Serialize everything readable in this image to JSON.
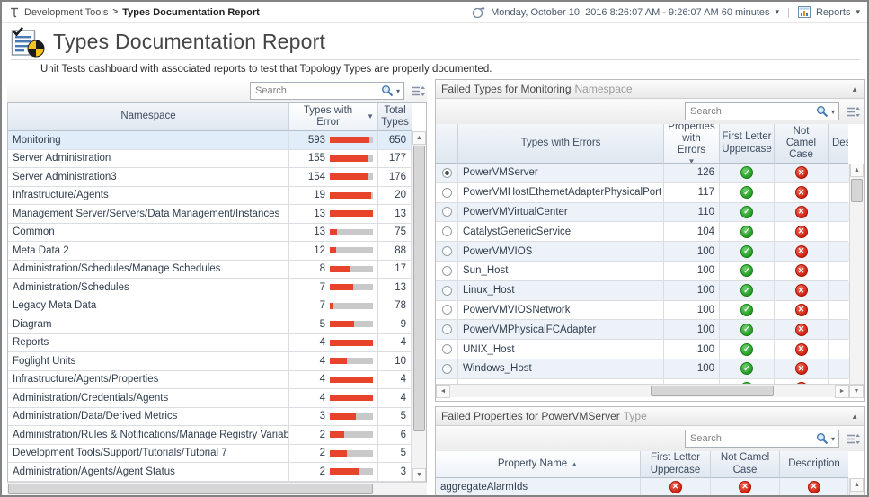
{
  "icons": {
    "caret_down": "▾",
    "sort_desc": "▼",
    "sort_asc": "▲",
    "collapse": "▲",
    "scroll_up": "▲",
    "scroll_down": "▼",
    "scroll_left": "◄",
    "scroll_right": "►",
    "divider": "|",
    "check": "✓",
    "cross": "✕"
  },
  "colors": {
    "error_bar": "#e8432b",
    "bar_track": "#c9c9c9",
    "pass_green": "#28a428",
    "fail_red": "#d52a12"
  },
  "breadcrumb": {
    "root": "Development Tools",
    "separator": ">",
    "current": "Types Documentation Report"
  },
  "topbar": {
    "timerange": "Monday, October 10, 2016 8:26:07 AM - 9:26:07 AM 60 minutes",
    "reports_label": "Reports"
  },
  "header": {
    "title": "Types Documentation Report",
    "subtitle": "Unit Tests dashboard with associated reports to test that Topology Types are properly documented."
  },
  "namespace_panel": {
    "search_placeholder": "Search",
    "columns": {
      "namespace": "Namespace",
      "types_with_error": "Types with Error",
      "total_types": "Total Types"
    },
    "sort": {
      "column": "Types with Error",
      "direction": "desc"
    },
    "rows": [
      {
        "namespace": "Monitoring",
        "types_with_error": 593,
        "total_types": 650,
        "selected": true
      },
      {
        "namespace": "Server Administration",
        "types_with_error": 155,
        "total_types": 177
      },
      {
        "namespace": "Server Administration3",
        "types_with_error": 154,
        "total_types": 176
      },
      {
        "namespace": "Infrastructure/Agents",
        "types_with_error": 19,
        "total_types": 20
      },
      {
        "namespace": "Management Server/Servers/Data Management/Instances",
        "types_with_error": 13,
        "total_types": 13
      },
      {
        "namespace": "Common",
        "types_with_error": 13,
        "total_types": 75
      },
      {
        "namespace": "Meta Data 2",
        "types_with_error": 12,
        "total_types": 88
      },
      {
        "namespace": "Administration/Schedules/Manage Schedules",
        "types_with_error": 8,
        "total_types": 17
      },
      {
        "namespace": "Administration/Schedules",
        "types_with_error": 7,
        "total_types": 13
      },
      {
        "namespace": "Legacy Meta Data",
        "types_with_error": 7,
        "total_types": 78
      },
      {
        "namespace": "Diagram",
        "types_with_error": 5,
        "total_types": 9
      },
      {
        "namespace": "Reports",
        "types_with_error": 4,
        "total_types": 4
      },
      {
        "namespace": "Foglight Units",
        "types_with_error": 4,
        "total_types": 10
      },
      {
        "namespace": "Infrastructure/Agents/Properties",
        "types_with_error": 4,
        "total_types": 4
      },
      {
        "namespace": "Administration/Credentials/Agents",
        "types_with_error": 4,
        "total_types": 4
      },
      {
        "namespace": "Administration/Data/Derived Metrics",
        "types_with_error": 3,
        "total_types": 5
      },
      {
        "namespace": "Administration/Rules & Notifications/Manage Registry Variables",
        "types_with_error": 2,
        "total_types": 6
      },
      {
        "namespace": "Development Tools/Support/Tutorials/Tutorial 7",
        "types_with_error": 2,
        "total_types": 5
      },
      {
        "namespace": "Administration/Agents/Agent Status",
        "types_with_error": 2,
        "total_types": 3
      }
    ]
  },
  "failed_types_panel": {
    "title_main": "Failed Types for Monitoring",
    "title_suffix": "Namespace",
    "search_placeholder": "Search",
    "columns": {
      "types_with_errors": "Types with Errors",
      "properties_with_errors": "Properties with Errors",
      "first_letter_uppercase": "First Letter Uppercase",
      "not_camel_case": "Not Camel Case",
      "description": "Description"
    },
    "sort": {
      "column": "Properties with Errors",
      "direction": "desc"
    },
    "rows": [
      {
        "type": "PowerVMServer",
        "properties_with_errors": 126,
        "first_letter_uppercase": "pass",
        "not_camel_case": "fail",
        "selected": true
      },
      {
        "type": "PowerVMHostEthernetAdapterPhysicalPort",
        "properties_with_errors": 117,
        "first_letter_uppercase": "pass",
        "not_camel_case": "fail"
      },
      {
        "type": "PowerVMVirtualCenter",
        "properties_with_errors": 110,
        "first_letter_uppercase": "pass",
        "not_camel_case": "fail"
      },
      {
        "type": "CatalystGenericService",
        "properties_with_errors": 104,
        "first_letter_uppercase": "pass",
        "not_camel_case": "fail"
      },
      {
        "type": "PowerVMVIOS",
        "properties_with_errors": 100,
        "first_letter_uppercase": "pass",
        "not_camel_case": "fail"
      },
      {
        "type": "Sun_Host",
        "properties_with_errors": 100,
        "first_letter_uppercase": "pass",
        "not_camel_case": "fail"
      },
      {
        "type": "Linux_Host",
        "properties_with_errors": 100,
        "first_letter_uppercase": "pass",
        "not_camel_case": "fail"
      },
      {
        "type": "PowerVMVIOSNetwork",
        "properties_with_errors": 100,
        "first_letter_uppercase": "pass",
        "not_camel_case": "fail"
      },
      {
        "type": "PowerVMPhysicalFCAdapter",
        "properties_with_errors": 100,
        "first_letter_uppercase": "pass",
        "not_camel_case": "fail"
      },
      {
        "type": "UNIX_Host",
        "properties_with_errors": 100,
        "first_letter_uppercase": "pass",
        "not_camel_case": "fail"
      },
      {
        "type": "Windows_Host",
        "properties_with_errors": 100,
        "first_letter_uppercase": "pass",
        "not_camel_case": "fail"
      },
      {
        "type": "",
        "properties_with_errors": "",
        "first_letter_uppercase": "pass",
        "not_camel_case": "fail",
        "partial": true
      }
    ]
  },
  "failed_properties_panel": {
    "title_main": "Failed Properties for PowerVMServer",
    "title_suffix": "Type",
    "search_placeholder": "Search",
    "columns": {
      "property_name": "Property Name",
      "first_letter_uppercase": "First Letter Uppercase",
      "not_camel_case": "Not Camel Case",
      "description": "Description"
    },
    "sort": {
      "column": "Property Name",
      "direction": "asc"
    },
    "rows": [
      {
        "property": "aggregateAlarmIds",
        "first_letter_uppercase": "fail",
        "not_camel_case": "fail",
        "description": "fail"
      }
    ]
  }
}
